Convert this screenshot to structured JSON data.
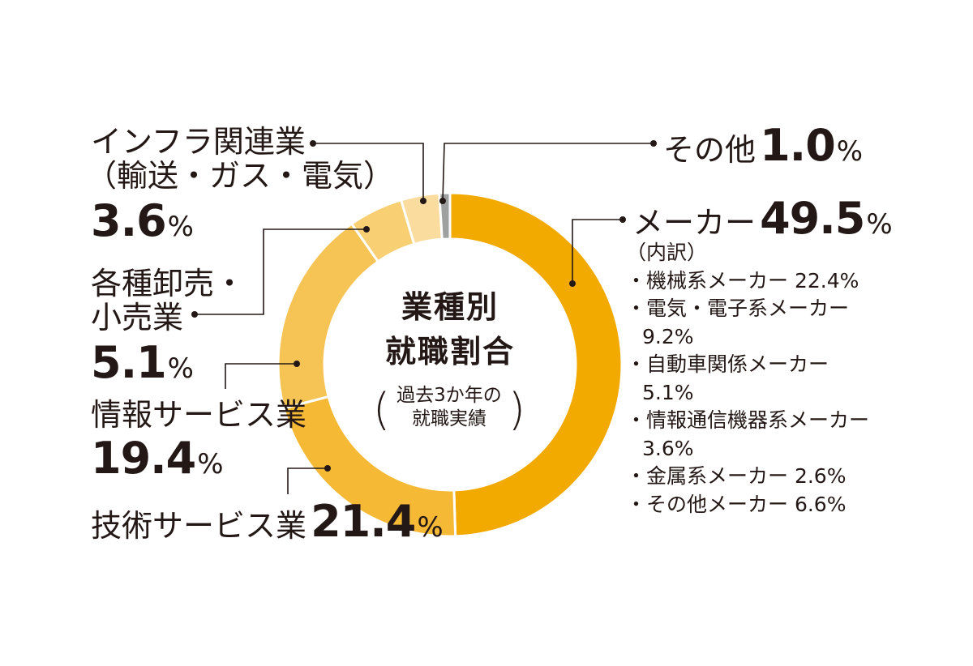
{
  "chart_data": {
    "type": "pie",
    "title_lines": [
      "業種別",
      "就職割合"
    ],
    "subtitle_lines": [
      "過去3か年の",
      "就職実績"
    ],
    "slices": [
      {
        "name": "メーカー",
        "value": 49.5,
        "value_text": "49.5",
        "color": "#F3AA00"
      },
      {
        "name": "技術サービス業",
        "value": 21.4,
        "value_text": "21.4",
        "color": "#F5B936"
      },
      {
        "name": "情報サービス業",
        "value": 19.4,
        "value_text": "19.4",
        "color": "#F6C454"
      },
      {
        "name": "各種卸売・小売業",
        "value": 5.1,
        "value_text": "5.1",
        "color": "#F8CF72"
      },
      {
        "name": "インフラ関連業（輸送・ガス・電気）",
        "value": 3.6,
        "value_text": "3.6",
        "color": "#FADD9E"
      },
      {
        "name": "その他",
        "value": 1.0,
        "value_text": "1.0",
        "color": "#9FA0A0"
      }
    ],
    "unit": "%"
  },
  "labels": {
    "maker": {
      "name": "メーカー",
      "pct": "49.5"
    },
    "other": {
      "name": "その他",
      "pct": "1.0"
    },
    "infra": {
      "line1": "インフラ関連業",
      "line2": "（輸送・ガス・電気）",
      "pct": "3.6"
    },
    "retail": {
      "line1": "各種卸売・",
      "line2": "小売業",
      "pct": "5.1"
    },
    "info": {
      "name": "情報サービス業",
      "pct": "19.4"
    },
    "tech": {
      "name": "技術サービス業",
      "pct": "21.4"
    },
    "unit": "%"
  },
  "breakdown": {
    "heading": "（内訳）",
    "rows": [
      "・機械系メーカー 22.4%",
      "・電気・電子系メーカー",
      "9.2%",
      "・自動車関係メーカー",
      "5.1%",
      "・情報通信機器系メーカー",
      "3.6%",
      "・金属系メーカー 2.6%",
      "・その他メーカー 6.6%"
    ]
  }
}
